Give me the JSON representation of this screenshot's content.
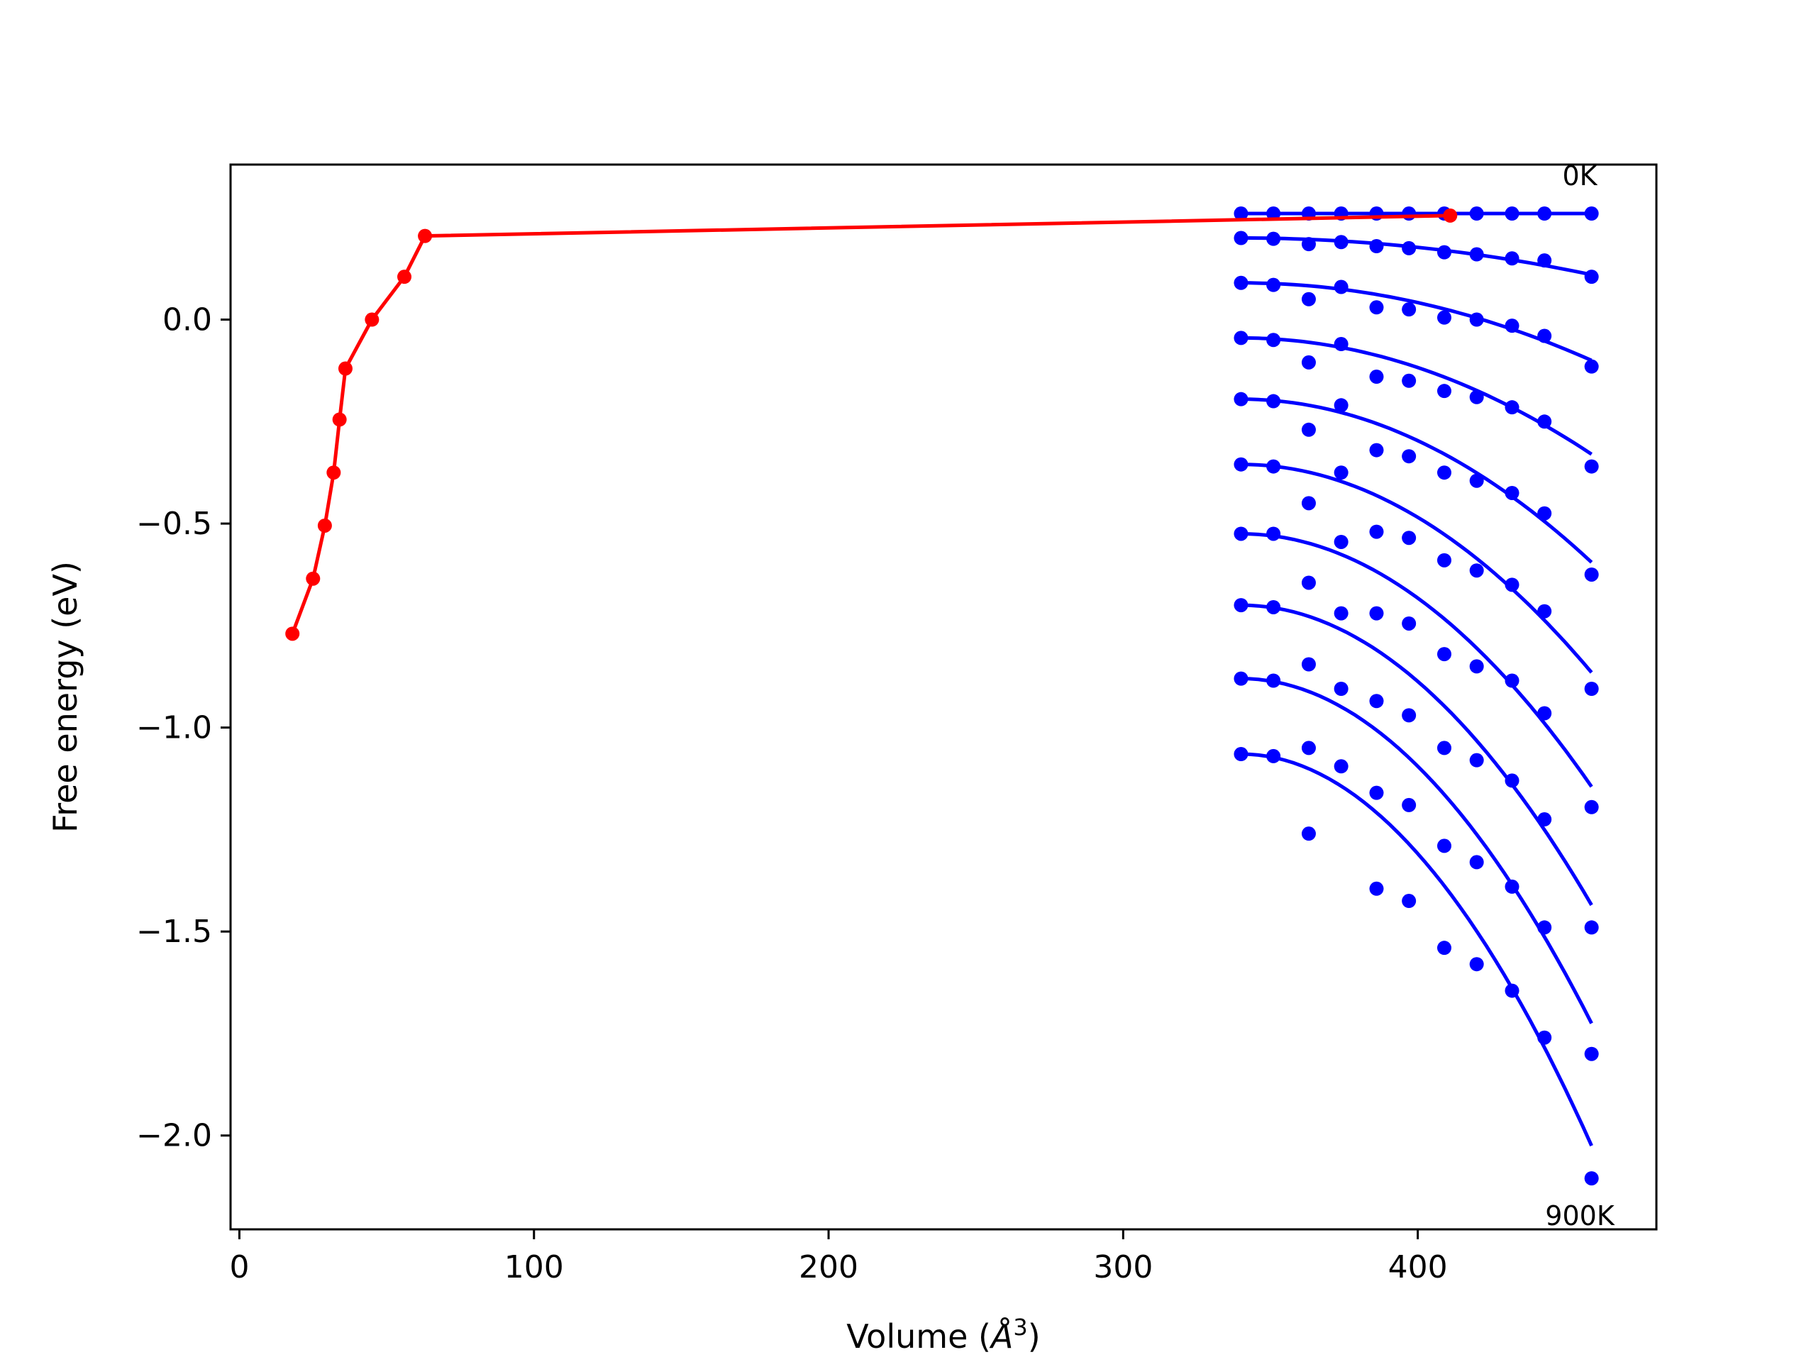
{
  "chart_data": {
    "type": "scatter",
    "xlabel_text": "Volume (",
    "xlabel_unit": "Å",
    "xlabel_exp": "3",
    "xlabel_close": ")",
    "ylabel": "Free energy (eV)",
    "xlim": [
      -3,
      481
    ],
    "ylim": [
      -2.23,
      0.38
    ],
    "xticks": [
      0,
      100,
      200,
      300,
      400
    ],
    "xtick_labels": [
      "0",
      "100",
      "200",
      "300",
      "400"
    ],
    "yticks": [
      0.0,
      -0.5,
      -1.0,
      -1.5,
      -2.0
    ],
    "ytick_labels": [
      "0.0",
      "−0.5",
      "−1.0",
      "−1.5",
      "−2.0"
    ],
    "grid": false,
    "annotations": [
      {
        "text": "0K",
        "x": 455,
        "y": 0.33
      },
      {
        "text": "900K",
        "x": 455,
        "y": -2.22
      }
    ],
    "colors": {
      "path": "#ff0000",
      "isotherms": "#0000ff"
    },
    "path": {
      "x": [
        18,
        25,
        29,
        32,
        34,
        36,
        45,
        56,
        63,
        411
      ],
      "y": [
        -0.77,
        -0.635,
        -0.505,
        -0.375,
        -0.245,
        -0.12,
        0.0,
        0.105,
        0.205,
        0.255
      ]
    },
    "volumes": [
      340,
      351,
      363,
      374,
      386,
      397,
      409,
      420,
      432,
      443,
      459
    ],
    "isotherms": [
      {
        "points": [
          0.26,
          0.26,
          0.26,
          0.26,
          0.26,
          0.26,
          0.26,
          0.26,
          0.26,
          0.26,
          0.26
        ],
        "fit": [
          0.26,
          0.26
        ]
      },
      {
        "points": [
          0.2,
          0.198,
          0.185,
          0.19,
          0.18,
          0.175,
          0.165,
          0.16,
          0.15,
          0.145,
          0.105
        ],
        "fit": [
          0.2,
          0.11
        ]
      },
      {
        "points": [
          0.09,
          0.085,
          0.05,
          0.08,
          0.03,
          0.025,
          0.005,
          0.0,
          -0.015,
          -0.04,
          -0.115
        ],
        "fit": [
          0.09,
          -0.1
        ]
      },
      {
        "points": [
          -0.045,
          -0.05,
          -0.105,
          -0.06,
          -0.14,
          -0.15,
          -0.175,
          -0.19,
          -0.215,
          -0.25,
          -0.36
        ],
        "fit": [
          -0.045,
          -0.33
        ]
      },
      {
        "points": [
          -0.195,
          -0.2,
          -0.27,
          -0.21,
          -0.32,
          -0.335,
          -0.375,
          -0.395,
          -0.425,
          -0.475,
          -0.625
        ],
        "fit": [
          -0.195,
          -0.595
        ]
      },
      {
        "points": [
          -0.355,
          -0.36,
          -0.45,
          -0.375,
          -0.52,
          -0.535,
          -0.59,
          -0.615,
          -0.65,
          -0.715,
          -0.905
        ],
        "fit": [
          -0.355,
          -0.865
        ]
      },
      {
        "points": [
          -0.525,
          -0.525,
          -0.645,
          -0.545,
          -0.72,
          -0.745,
          -0.82,
          -0.85,
          -0.885,
          -0.965,
          -1.195
        ],
        "fit": [
          -0.525,
          -1.145
        ]
      },
      {
        "points": [
          -0.7,
          -0.705,
          -0.845,
          -0.72,
          -0.935,
          -0.97,
          -1.05,
          -1.08,
          -1.13,
          -1.225,
          -1.49
        ],
        "fit": [
          -0.7,
          -1.435
        ]
      },
      {
        "points": [
          -0.88,
          -0.885,
          -1.05,
          -0.905,
          -1.16,
          -1.19,
          -1.29,
          -1.33,
          -1.39,
          -1.49,
          -1.8
        ],
        "fit": [
          -0.88,
          -1.725
        ]
      },
      {
        "points": [
          -1.065,
          -1.07,
          -1.26,
          -1.095,
          -1.395,
          -1.425,
          -1.54,
          -1.58,
          -1.645,
          -1.76,
          -2.105
        ],
        "fit": [
          -1.065,
          -2.025
        ]
      }
    ]
  }
}
